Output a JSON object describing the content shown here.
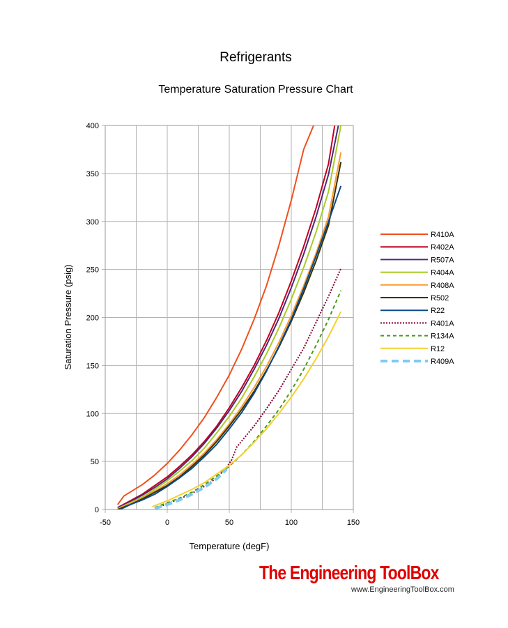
{
  "chart_data": {
    "type": "line",
    "title": "Refrigerants",
    "subtitle": "Temperature Saturation Pressure Chart",
    "xlabel": "Temperature  (degF)",
    "ylabel": "Saturation Pressure (psig)",
    "xlim": [
      -50,
      150
    ],
    "ylim": [
      0,
      400
    ],
    "xticks": [
      -50,
      0,
      50,
      100,
      150
    ],
    "yticks": [
      0,
      50,
      100,
      150,
      200,
      250,
      300,
      350,
      400
    ],
    "grid": true,
    "legend_position": "right",
    "series": [
      {
        "name": "R410A",
        "color": "#f0501e",
        "style": "solid",
        "x": [
          -40,
          -35,
          -20,
          -10,
          0,
          10,
          20,
          30,
          40,
          50,
          60,
          70,
          80,
          90,
          100,
          110,
          118
        ],
        "y": [
          5,
          14,
          26,
          36,
          48,
          62,
          78,
          96,
          117,
          140,
          167,
          198,
          233,
          275,
          322,
          375,
          400
        ]
      },
      {
        "name": "R402A",
        "color": "#c00020",
        "style": "solid",
        "x": [
          -40,
          -30,
          -20,
          -10,
          0,
          10,
          20,
          30,
          40,
          50,
          60,
          70,
          80,
          90,
          100,
          110,
          120,
          130,
          135
        ],
        "y": [
          2,
          9,
          16,
          25,
          34,
          45,
          57,
          71,
          87,
          106,
          127,
          150,
          176,
          205,
          238,
          274,
          314,
          360,
          400
        ]
      },
      {
        "name": "R507A",
        "color": "#502878",
        "style": "solid",
        "x": [
          -40,
          -30,
          -20,
          -10,
          0,
          10,
          20,
          30,
          40,
          50,
          60,
          70,
          80,
          90,
          100,
          110,
          120,
          130,
          138
        ],
        "y": [
          2,
          8,
          15,
          23,
          32,
          43,
          55,
          69,
          85,
          103,
          123,
          146,
          171,
          199,
          231,
          266,
          305,
          349,
          400
        ]
      },
      {
        "name": "R404A",
        "color": "#a8cc22",
        "style": "solid",
        "x": [
          -40,
          -30,
          -20,
          -10,
          0,
          10,
          20,
          30,
          40,
          50,
          60,
          70,
          80,
          90,
          100,
          110,
          120,
          130,
          140
        ],
        "y": [
          1,
          7,
          13,
          21,
          30,
          40,
          51,
          64,
          80,
          97,
          116,
          138,
          162,
          189,
          219,
          252,
          289,
          331,
          400
        ]
      },
      {
        "name": "R408A",
        "color": "#ff9930",
        "style": "solid",
        "x": [
          -40,
          -30,
          -20,
          -10,
          0,
          10,
          20,
          30,
          40,
          50,
          60,
          70,
          80,
          90,
          100,
          110,
          120,
          130,
          140
        ],
        "y": [
          1,
          6,
          12,
          19,
          27,
          36,
          47,
          59,
          73,
          89,
          107,
          127,
          149,
          174,
          202,
          233,
          267,
          305,
          372
        ]
      },
      {
        "name": "R502",
        "color": "#333300",
        "style": "solid",
        "x": [
          -40,
          -30,
          -20,
          -10,
          0,
          10,
          20,
          30,
          40,
          50,
          60,
          70,
          80,
          90,
          100,
          110,
          120,
          130,
          140
        ],
        "y": [
          0,
          5,
          11,
          18,
          25,
          34,
          45,
          57,
          71,
          87,
          104,
          123,
          145,
          169,
          196,
          226,
          259,
          296,
          362
        ]
      },
      {
        "name": "R22",
        "color": "#0a4a8a",
        "style": "solid",
        "x": [
          -38,
          -30,
          -20,
          -10,
          0,
          10,
          20,
          30,
          40,
          50,
          60,
          70,
          80,
          90,
          100,
          110,
          120,
          130,
          140
        ],
        "y": [
          0,
          5,
          10,
          16,
          24,
          33,
          43,
          55,
          68,
          84,
          101,
          121,
          144,
          170,
          198,
          230,
          264,
          300,
          337
        ]
      },
      {
        "name": "R401A",
        "color": "#800030",
        "style": "dotted",
        "x": [
          -10,
          0,
          10,
          20,
          30,
          40,
          48,
          52,
          56,
          70,
          80,
          90,
          100,
          110,
          120,
          130,
          140
        ],
        "y": [
          1,
          6,
          11,
          17,
          24,
          33,
          44,
          52,
          65,
          87,
          105,
          124,
          146,
          168,
          195,
          222,
          251
        ]
      },
      {
        "name": "R134A",
        "color": "#4a9a18",
        "style": "dashed",
        "x": [
          -10,
          0,
          10,
          20,
          30,
          40,
          50,
          60,
          70,
          80,
          90,
          100,
          110,
          120,
          130,
          140
        ],
        "y": [
          2,
          7,
          12,
          18,
          26,
          35,
          45,
          57,
          71,
          87,
          104,
          124,
          146,
          171,
          198,
          228
        ]
      },
      {
        "name": "R12",
        "color": "#f5d030",
        "style": "solid",
        "x": [
          -12,
          0,
          10,
          20,
          30,
          40,
          50,
          60,
          70,
          80,
          90,
          100,
          110,
          120,
          130,
          140
        ],
        "y": [
          3,
          9,
          15,
          21,
          28,
          37,
          46,
          57,
          70,
          84,
          100,
          117,
          136,
          157,
          180,
          206
        ]
      },
      {
        "name": "R409A",
        "color": "#7fcaf5",
        "style": "thick-dashed",
        "x": [
          -10,
          0,
          10,
          20,
          30,
          40,
          48
        ],
        "y": [
          1,
          5,
          10,
          16,
          23,
          32,
          42
        ]
      }
    ]
  },
  "branding": {
    "name": "The Engineering ToolBox",
    "url": "www.EngineeringToolBox.com"
  }
}
